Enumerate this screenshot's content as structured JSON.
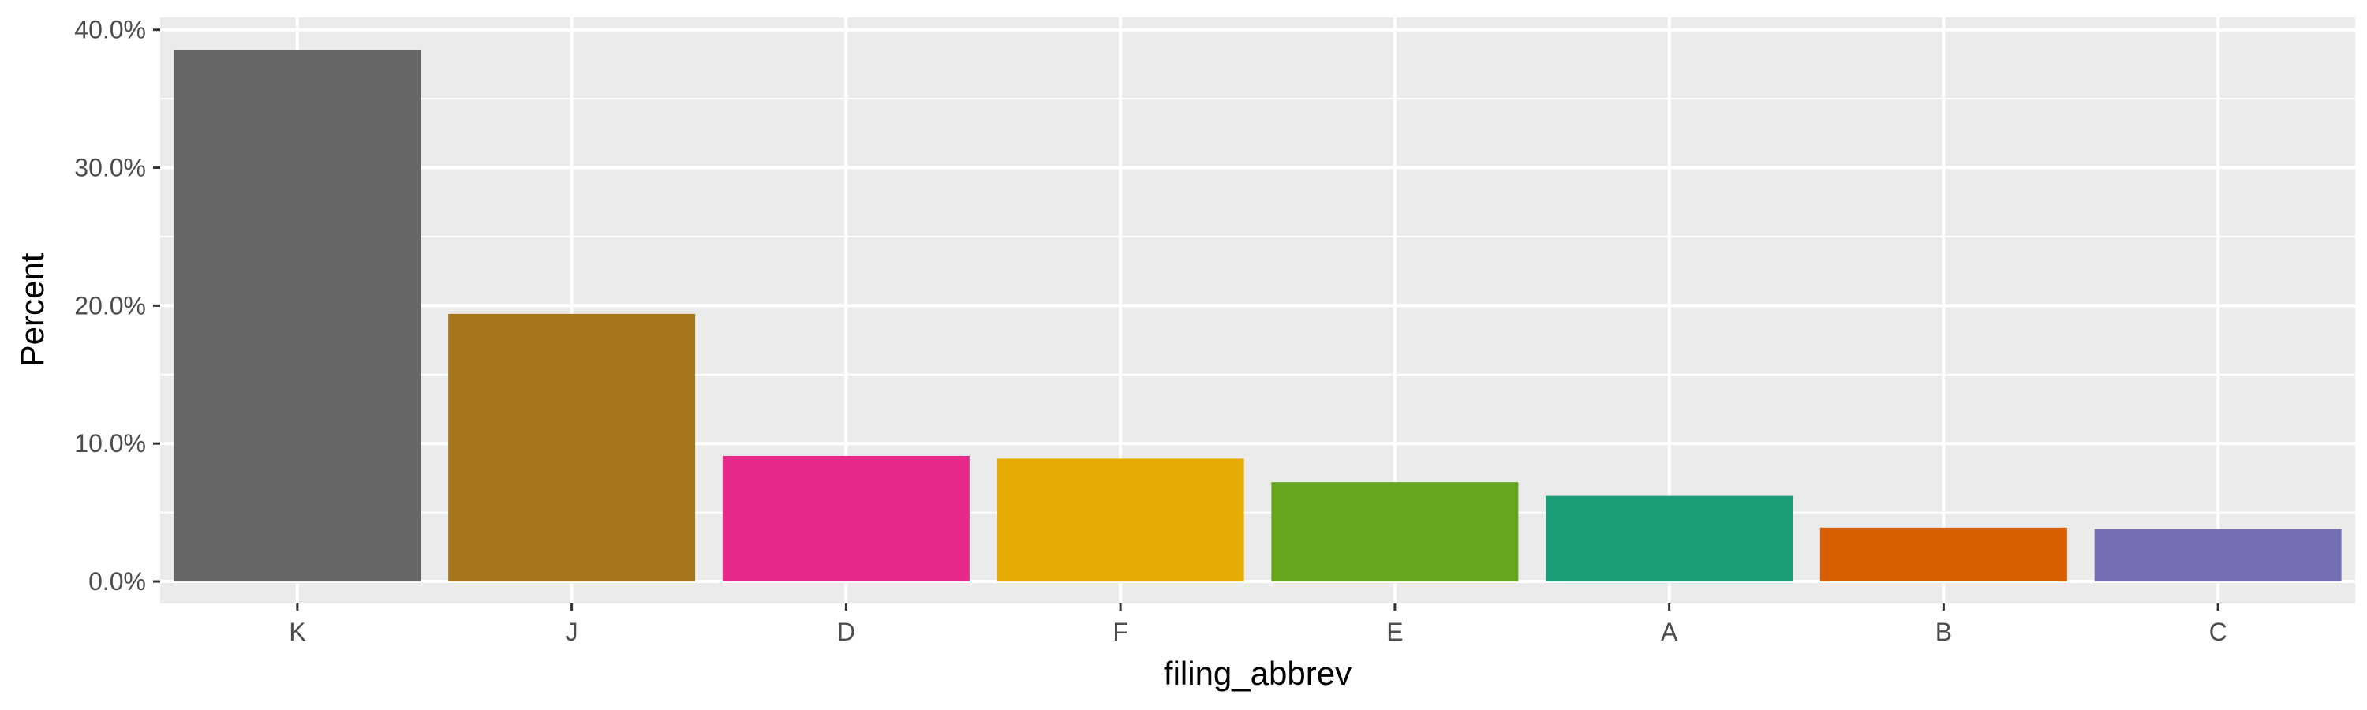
{
  "chart_data": {
    "type": "bar",
    "xlabel": "filing_abbrev",
    "ylabel": "Percent",
    "categories": [
      "K",
      "J",
      "D",
      "F",
      "E",
      "A",
      "B",
      "C"
    ],
    "values": [
      38.5,
      19.4,
      9.1,
      8.9,
      7.2,
      6.2,
      3.9,
      3.8
    ],
    "colors": [
      "#666666",
      "#A6761D",
      "#E7298A",
      "#E6AB02",
      "#66A61E",
      "#1B9E77",
      "#D95F02",
      "#7570B3"
    ],
    "ylim": [
      -1.6,
      40.9
    ],
    "yticks": [
      0,
      10,
      20,
      30,
      40
    ],
    "ytick_labels": [
      "0.0%",
      "10.0%",
      "20.0%",
      "30.0%",
      "40.0%"
    ],
    "grid": true,
    "panel_background": "#EBEBEB",
    "gridline_color": "#FFFFFF"
  }
}
